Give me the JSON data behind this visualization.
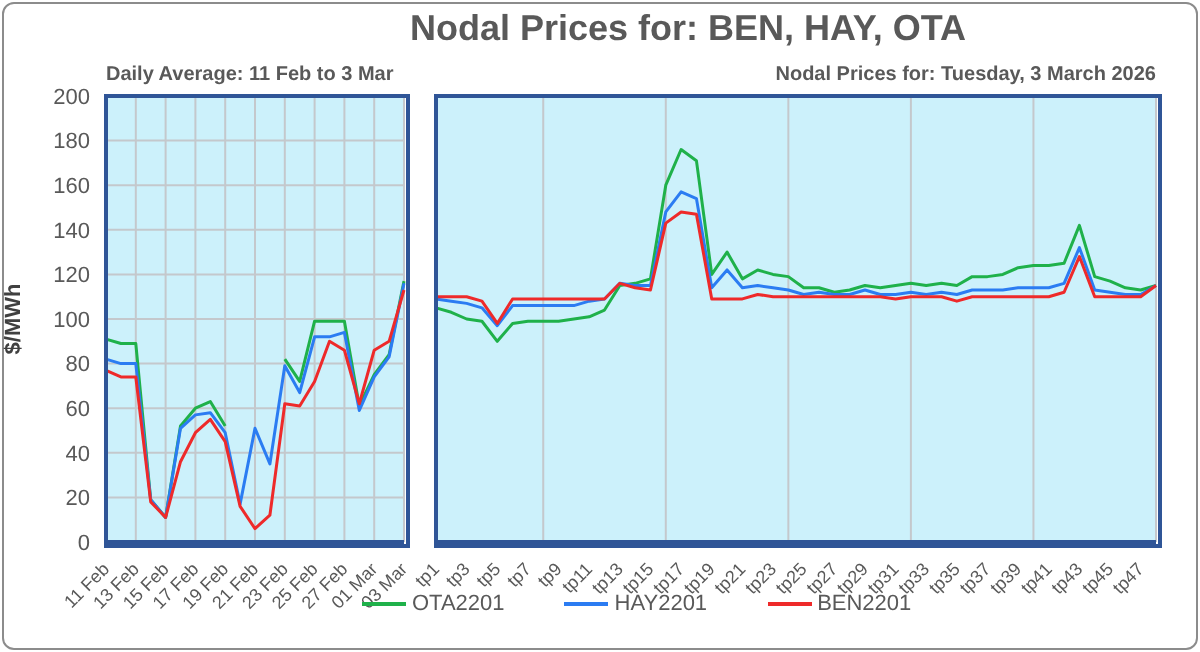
{
  "chart_data": [
    {
      "type": "line",
      "subtitle": "Daily Average: 11 Feb to 3 Mar",
      "ylabel": "$/MWh",
      "categories": [
        "11 Feb",
        null,
        "13 Feb",
        null,
        "15 Feb",
        null,
        "17 Feb",
        null,
        "19 Feb",
        null,
        "21 Feb",
        null,
        "23 Feb",
        null,
        "25 Feb",
        null,
        "27 Feb",
        null,
        "01 Mar",
        null,
        "03 Mar"
      ],
      "series": [
        {
          "color": "#1fb14a",
          "values": [
            91,
            89,
            89,
            19,
            11,
            52,
            60,
            63,
            52,
            null,
            null,
            null,
            82,
            72,
            99,
            99,
            99,
            61,
            75,
            84,
            117
          ]
        },
        {
          "color": "#2b7cf2",
          "values": [
            82,
            80,
            80,
            19,
            11,
            51,
            57,
            58,
            49,
            17,
            51,
            35,
            79,
            67,
            92,
            92,
            94,
            59,
            74,
            83,
            116
          ]
        },
        {
          "color": "#ee2a2a",
          "values": [
            77,
            74,
            74,
            18,
            11,
            36,
            49,
            55,
            45,
            16,
            6,
            12,
            62,
            61,
            72,
            90,
            86,
            62,
            86,
            90,
            113
          ]
        }
      ],
      "ylim": [
        0,
        200
      ],
      "yticks": [
        0,
        20,
        40,
        60,
        80,
        100,
        120,
        140,
        160,
        180,
        200
      ],
      "grid": true,
      "marker": "none",
      "line_style": "solid"
    },
    {
      "type": "line",
      "title": "Nodal Prices for: BEN, HAY, OTA",
      "subtitle": "Nodal Prices for: Tuesday, 3 March 2026",
      "categories": [
        "tp1",
        null,
        "tp3",
        null,
        "tp5",
        null,
        "tp7",
        null,
        "tp9",
        null,
        "tp11",
        null,
        "tp13",
        null,
        "tp15",
        null,
        "tp17",
        null,
        "tp19",
        null,
        "tp21",
        null,
        "tp23",
        null,
        "tp25",
        null,
        "tp27",
        null,
        "tp29",
        null,
        "tp31",
        null,
        "tp33",
        null,
        "tp35",
        null,
        "tp37",
        null,
        "tp39",
        null,
        "tp41",
        null,
        "tp43",
        null,
        "tp45",
        null,
        "tp47",
        null
      ],
      "series": [
        {
          "name": "OTA2201",
          "color": "#1fb14a",
          "values": [
            105,
            103,
            100,
            99,
            90,
            98,
            99,
            99,
            99,
            100,
            101,
            104,
            115,
            116,
            118,
            160,
            176,
            171,
            120,
            130,
            118,
            122,
            120,
            119,
            114,
            114,
            112,
            113,
            115,
            114,
            115,
            116,
            115,
            116,
            115,
            119,
            119,
            120,
            123,
            124,
            124,
            125,
            142,
            119,
            117,
            114,
            113,
            115
          ]
        },
        {
          "name": "HAY2201",
          "color": "#2b7cf2",
          "values": [
            109,
            108,
            107,
            105,
            97,
            106,
            106,
            106,
            106,
            106,
            108,
            109,
            116,
            115,
            115,
            148,
            157,
            154,
            114,
            122,
            114,
            115,
            114,
            113,
            111,
            112,
            111,
            111,
            113,
            111,
            111,
            112,
            111,
            112,
            111,
            113,
            113,
            113,
            114,
            114,
            114,
            116,
            132,
            113,
            112,
            111,
            111,
            115
          ]
        },
        {
          "name": "BEN2201",
          "color": "#ee2a2a",
          "values": [
            110,
            110,
            110,
            108,
            98,
            109,
            109,
            109,
            109,
            109,
            109,
            109,
            116,
            114,
            113,
            143,
            148,
            147,
            109,
            109,
            109,
            111,
            110,
            110,
            110,
            110,
            110,
            110,
            110,
            110,
            109,
            110,
            110,
            110,
            108,
            110,
            110,
            110,
            110,
            110,
            110,
            112,
            128,
            110,
            110,
            110,
            110,
            115
          ]
        }
      ],
      "ylim": [
        0,
        200
      ],
      "yticks": [
        0,
        20,
        40,
        60,
        80,
        100,
        120,
        140,
        160,
        180,
        200
      ],
      "grid": true,
      "tick_labels": "x",
      "legend": "bottom",
      "marker": "none",
      "line_style": "solid"
    }
  ]
}
